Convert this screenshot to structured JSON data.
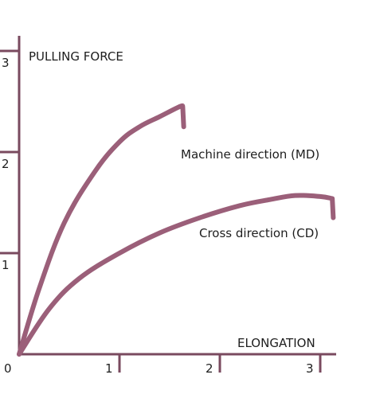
{
  "chart_data": {
    "type": "line",
    "xlabel": "ELONGATION",
    "ylabel": "PULLING FORCE",
    "xlim": [
      0,
      3.2
    ],
    "ylim": [
      0,
      3.1
    ],
    "x_ticks": [
      "0",
      "1",
      "2",
      "3"
    ],
    "y_ticks": [
      "1",
      "2",
      "3"
    ],
    "grid": false,
    "line_color": "#9b5f79",
    "axis_color": "#7a4a5f",
    "series": [
      {
        "name": "Machine direction (MD)",
        "x": [
          0.0,
          0.2,
          0.45,
          0.75,
          1.0,
          1.2,
          1.4,
          1.6,
          1.63,
          1.64
        ],
        "y": [
          0.0,
          0.65,
          1.3,
          1.8,
          2.1,
          2.25,
          2.35,
          2.45,
          2.45,
          2.25
        ]
      },
      {
        "name": "Cross direction (CD)",
        "x": [
          0.0,
          0.3,
          0.6,
          1.0,
          1.4,
          1.8,
          2.2,
          2.5,
          2.75,
          3.0,
          3.12,
          3.13
        ],
        "y": [
          0.0,
          0.45,
          0.75,
          1.0,
          1.2,
          1.35,
          1.47,
          1.53,
          1.57,
          1.56,
          1.54,
          1.35
        ]
      }
    ]
  }
}
